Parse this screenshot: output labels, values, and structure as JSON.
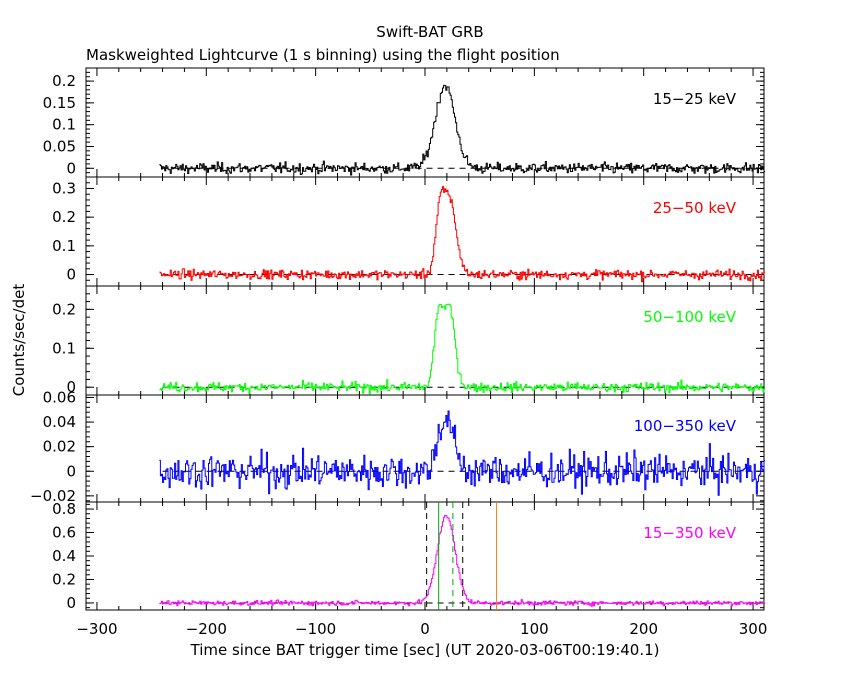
{
  "title": "Swift-BAT GRB",
  "subtitle": "Maskweighted Lightcurve (1 s binning) using the flight position",
  "chart_data": {
    "type": "line",
    "shared_x": {
      "label": "Time since BAT trigger time [sec] (UT 2020-03-06T00:19:40.1)",
      "range": [
        -310,
        310
      ],
      "ticks": [
        -300,
        -200,
        -100,
        0,
        100,
        200,
        300
      ],
      "tick_labels": [
        "−300",
        "−200",
        "−100",
        "0",
        "100",
        "200",
        "300"
      ],
      "data_start": -243,
      "data_end": 310,
      "bin": 1
    },
    "ylabel": "Counts/sec/det",
    "panels": [
      {
        "label": "15−25 keV",
        "color": "#000000",
        "ylim": [
          -0.02,
          0.23
        ],
        "ticks": [
          0,
          0.05,
          0.1,
          0.15,
          0.2
        ],
        "tick_labels": [
          "0",
          "0.05",
          "0.1",
          "0.15",
          "0.2"
        ],
        "noise": 0.006,
        "baseline": 0,
        "peaks": [
          {
            "t": 18,
            "amp": 0.19,
            "width": 9
          }
        ]
      },
      {
        "label": "25−50 keV",
        "color": "#ff0000",
        "ylim": [
          -0.04,
          0.34
        ],
        "ticks": [
          0,
          0.1,
          0.2,
          0.3
        ],
        "tick_labels": [
          "0",
          "0.1",
          "0.2",
          "0.3"
        ],
        "noise": 0.008,
        "baseline": 0,
        "peaks": [
          {
            "t": 13,
            "amp": 0.18,
            "width": 4
          },
          {
            "t": 22,
            "amp": 0.26,
            "width": 6
          }
        ]
      },
      {
        "label": "50−100 keV",
        "color": "#00ff00",
        "ylim": [
          -0.02,
          0.26
        ],
        "ticks": [
          0,
          0.1,
          0.2
        ],
        "tick_labels": [
          "0",
          "0.1",
          "0.2"
        ],
        "noise": 0.006,
        "baseline": 0,
        "peaks": [
          {
            "t": 12,
            "amp": 0.18,
            "width": 4
          },
          {
            "t": 22,
            "amp": 0.2,
            "width": 5
          }
        ]
      },
      {
        "label": "100−350 keV",
        "color": "#0000ff",
        "ylim": [
          -0.025,
          0.062
        ],
        "ticks": [
          -0.02,
          0,
          0.02,
          0.04,
          0.06
        ],
        "tick_labels": [
          "−0.02",
          "0",
          "0.02",
          "0.04",
          "0.06"
        ],
        "noise": 0.007,
        "baseline": 0,
        "peaks": [
          {
            "t": 14,
            "amp": 0.025,
            "width": 5
          },
          {
            "t": 22,
            "amp": 0.03,
            "width": 6
          }
        ]
      },
      {
        "label": "15−350 keV",
        "color": "#ff00ff",
        "ylim": [
          -0.06,
          0.86
        ],
        "ticks": [
          0,
          0.2,
          0.4,
          0.6,
          0.8
        ],
        "tick_labels": [
          "0",
          "0.2",
          "0.4",
          "0.6",
          "0.8"
        ],
        "noise": 0.01,
        "baseline": 0,
        "peaks": [
          {
            "t": 19,
            "amp": 0.75,
            "width": 8
          }
        ],
        "vlines": [
          {
            "t": 1.5,
            "color": "#000000",
            "dash": true
          },
          {
            "t": 34.5,
            "color": "#000000",
            "dash": true
          },
          {
            "t": 12.5,
            "color": "#00aa00",
            "dash": false
          },
          {
            "t": 25.5,
            "color": "#00aa00",
            "dash": true
          },
          {
            "t": 65.5,
            "color": "#e08000",
            "dash": false
          }
        ]
      }
    ]
  }
}
